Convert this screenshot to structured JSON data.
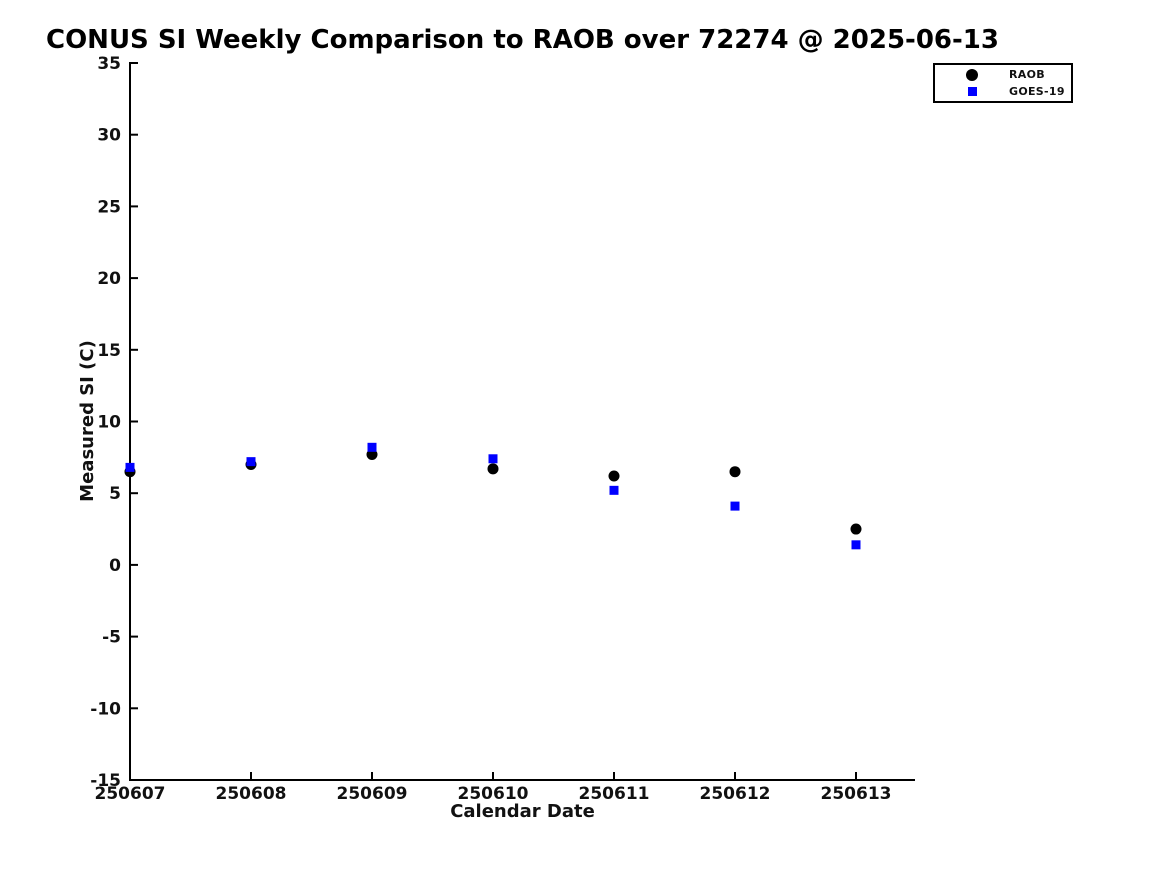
{
  "page": {
    "background_color": "#ffffff",
    "text_color": "#111111"
  },
  "chart_data": {
    "type": "scatter",
    "title": "CONUS SI Weekly Comparison to RAOB over 72274 @ 2025-06-13",
    "xlabel": "Calendar Date",
    "ylabel": "Measured SI (C)",
    "categories": [
      "250607",
      "250608",
      "250609",
      "250610",
      "250611",
      "250612",
      "250613"
    ],
    "ylim": [
      -15,
      35
    ],
    "ytick_step": 5,
    "grid": false,
    "legend_position": "top-right",
    "series": [
      {
        "name": "RAOB",
        "marker": "circle",
        "color": "#000000",
        "marker_size": 11,
        "values": [
          6.5,
          7.0,
          7.7,
          6.7,
          6.2,
          6.5,
          2.5
        ]
      },
      {
        "name": "GOES-19",
        "marker": "square",
        "color": "#0000ff",
        "marker_size": 9,
        "values": [
          6.8,
          7.2,
          8.2,
          7.4,
          5.2,
          4.1,
          1.4
        ]
      }
    ]
  }
}
